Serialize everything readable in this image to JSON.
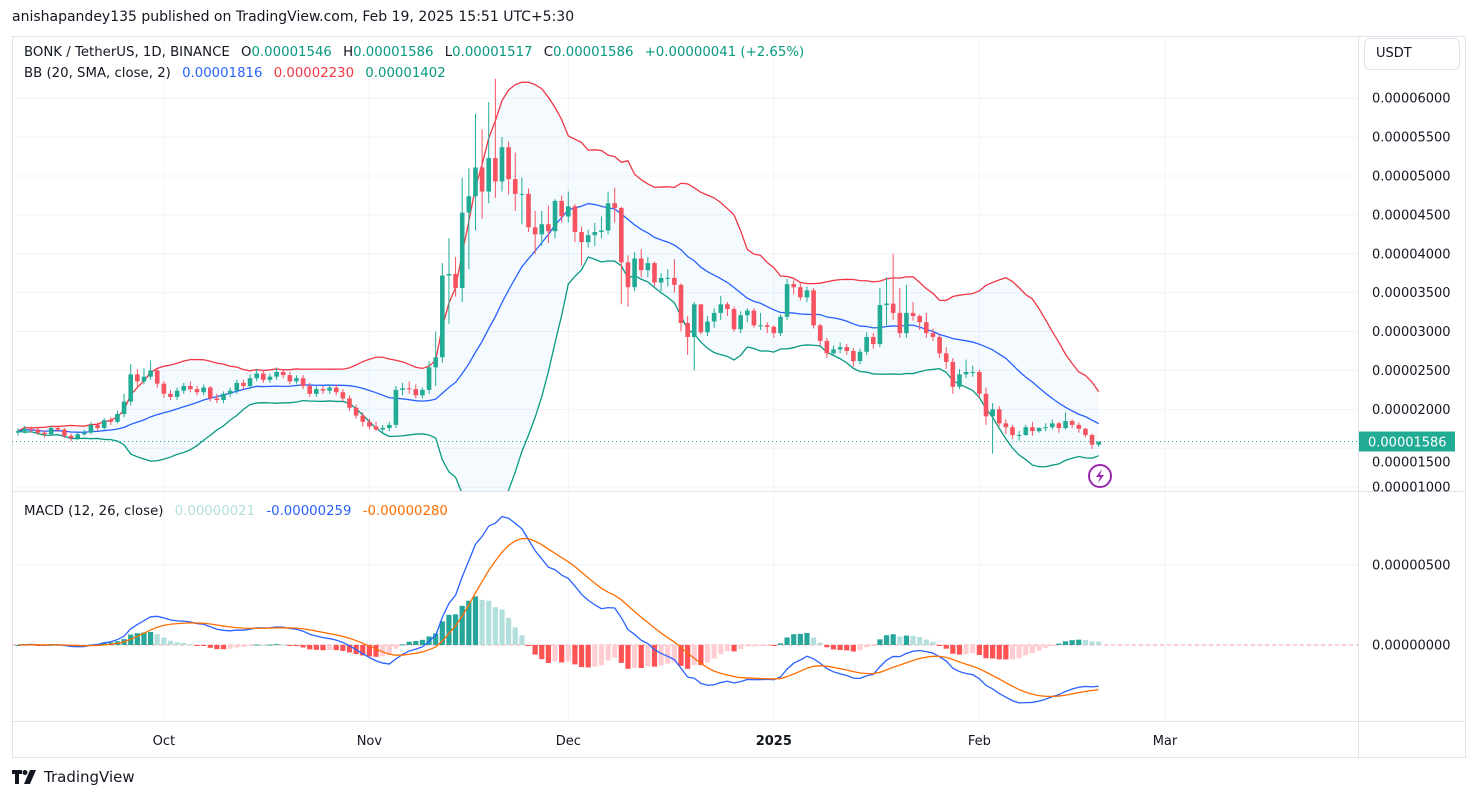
{
  "publish_line": "anishapandey135 published on TradingView.com, Feb 19, 2025 15:51 UTC+5:30",
  "symbol": {
    "title": "BONK / TetherUS, 1D, BINANCE",
    "o_label": "O",
    "o": "0.00001546",
    "h_label": "H",
    "h": "0.00001586",
    "l_label": "L",
    "l": "0.00001517",
    "c_label": "C",
    "c": "0.00001586",
    "change": "+0.00000041 (+2.65%)"
  },
  "bb": {
    "title": "BB (20, SMA, close, 2)",
    "basis": "0.00001816",
    "upper": "0.00002230",
    "lower": "0.00001402"
  },
  "macd": {
    "title": "MACD (12, 26, close)",
    "histogram": "0.00000021",
    "macd": "-0.00000259",
    "signal": "-0.00000280"
  },
  "currency_button": "USDT",
  "last_price_label": "0.00001586",
  "brand": "TradingView",
  "colors": {
    "up": "#22ab94",
    "down": "#f7525f",
    "bb_upper": "#f23645",
    "bb_basis": "#2962ff",
    "bb_lower": "#089981",
    "macd": "#2962ff",
    "signal": "#ff6d00",
    "hist_up_strong": "#26a69a",
    "hist_up_weak": "#b2dfdb",
    "hist_down_weak": "#ffcdd2",
    "hist_down_strong": "#ff5252",
    "alert_icon": "#9c27b0"
  },
  "icons": {
    "alert": "lightning-bolt-icon",
    "logo": "tradingview-logo-icon"
  },
  "chart_data": {
    "type": "candlestick",
    "price_ylim": [
      9.5e-06,
      6.8e-05
    ],
    "macd_ylim": [
      -4.75e-06,
      9.56e-06
    ],
    "price_ticks": [
      "0.00006000",
      "0.00005500",
      "0.00005000",
      "0.00004500",
      "0.00004000",
      "0.00003500",
      "0.00003000",
      "0.00002500",
      "0.00002000",
      "0.00001500",
      "0.00001000"
    ],
    "macd_ticks": [
      "0.00000500",
      "0.00000000"
    ],
    "time_ticks": [
      {
        "label": "Oct",
        "date": "2024-10-01"
      },
      {
        "label": "Nov",
        "date": "2024-11-01"
      },
      {
        "label": "Dec",
        "date": "2024-12-01"
      },
      {
        "label": "2025",
        "date": "2025-01-01",
        "bold": true
      },
      {
        "label": "Feb",
        "date": "2025-02-01"
      },
      {
        "label": "Mar",
        "date": "2025-03-01"
      }
    ],
    "grid": true,
    "indicators": [
      "Bollinger Bands (20, SMA, close, 2)",
      "MACD (12, 26, close)"
    ],
    "first_date": "2024-09-09",
    "last_date": "2025-02-19",
    "open": [
      1.7e-05,
      1.72e-05,
      1.75e-05,
      1.74e-05,
      1.7e-05,
      1.68e-05,
      1.76e-05,
      1.74e-05,
      1.66e-05,
      1.63e-05,
      1.68e-05,
      1.7e-05,
      1.8e-05,
      1.76e-05,
      1.86e-05,
      1.84e-05,
      1.94e-05,
      2.1e-05,
      2.45e-05,
      2.36e-05,
      2.42e-05,
      2.5e-05,
      2.33e-05,
      2.2e-05,
      2.16e-05,
      2.24e-05,
      2.3e-05,
      2.26e-05,
      2.22e-05,
      2.28e-05,
      2.14e-05,
      2.12e-05,
      2.2e-05,
      2.24e-05,
      2.34e-05,
      2.3e-05,
      2.4e-05,
      2.46e-05,
      2.38e-05,
      2.42e-05,
      2.48e-05,
      2.44e-05,
      2.36e-05,
      2.4e-05,
      2.3e-05,
      2.2e-05,
      2.26e-05,
      2.24e-05,
      2.28e-05,
      2.22e-05,
      2.14e-05,
      2.02e-05,
      1.92e-05,
      1.84e-05,
      1.78e-05,
      1.74e-05,
      1.76e-05,
      1.8e-05,
      2.25e-05,
      2.27e-05,
      2.26e-05,
      2.18e-05,
      2.25e-05,
      2.54e-05,
      2.67e-05,
      3.72e-05,
      3.74e-05,
      3.56e-05,
      4.53e-05,
      4.74e-05,
      5.11e-05,
      4.8e-05,
      5.23e-05,
      4.93e-05,
      5.37e-05,
      4.96e-05,
      4.77e-05,
      4.77e-05,
      4.34e-05,
      4.25e-05,
      4.38e-05,
      4.29e-05,
      4.68e-05,
      4.48e-05,
      4.61e-05,
      4.28e-05,
      4.15e-05,
      4.24e-05,
      4.28e-05,
      4.3e-05,
      4.65e-05,
      4.59e-05,
      3.89e-05,
      3.57e-05,
      3.94e-05,
      3.79e-05,
      3.88e-05,
      3.63e-05,
      3.69e-05,
      3.69e-05,
      3.6e-05,
      3.11e-05,
      2.93e-05,
      3.35e-05,
      2.99e-05,
      3.13e-05,
      3.24e-05,
      3.35e-05,
      3.29e-05,
      3.03e-05,
      3.21e-05,
      3.27e-05,
      3.08e-05,
      3.08e-05,
      3.06e-05,
      2.98e-05,
      3.19e-05,
      3.61e-05,
      3.57e-05,
      3.44e-05,
      3.53e-05,
      3.08e-05,
      2.88e-05,
      2.72e-05,
      2.77e-05,
      2.8e-05,
      2.75e-05,
      2.62e-05,
      2.74e-05,
      2.93e-05,
      2.84e-05,
      3.34e-05,
      3.36e-05,
      3.24e-05,
      2.98e-05,
      3.24e-05,
      3.2e-05,
      3.12e-05,
      2.98e-05,
      2.93e-05,
      2.72e-05,
      2.61e-05,
      2.29e-05,
      2.45e-05,
      2.48e-05,
      2.48e-05,
      2.2e-05,
      1.91e-05,
      2e-05,
      1.82e-05,
      1.77e-05,
      1.67e-05,
      1.67e-05,
      1.77e-05,
      1.72e-05,
      1.76e-05,
      1.77e-05,
      1.82e-05,
      1.76e-05,
      1.85e-05,
      1.8e-05,
      1.75e-05,
      1.67e-05,
      1.546e-05
    ],
    "high": [
      1.76e-05,
      1.79e-05,
      1.78e-05,
      1.77e-05,
      1.73e-05,
      1.79e-05,
      1.78e-05,
      1.76e-05,
      1.69e-05,
      1.71e-05,
      1.74e-05,
      1.84e-05,
      1.83e-05,
      1.89e-05,
      1.9e-05,
      1.98e-05,
      2.2e-05,
      2.58e-05,
      2.52e-05,
      2.53e-05,
      2.63e-05,
      2.52e-05,
      2.36e-05,
      2.25e-05,
      2.28e-05,
      2.34e-05,
      2.36e-05,
      2.3e-05,
      2.32e-05,
      2.3e-05,
      2.2e-05,
      2.23e-05,
      2.28e-05,
      2.38e-05,
      2.38e-05,
      2.45e-05,
      2.52e-05,
      2.5e-05,
      2.46e-05,
      2.54e-05,
      2.52e-05,
      2.48e-05,
      2.44e-05,
      2.44e-05,
      2.34e-05,
      2.3e-05,
      2.3e-05,
      2.32e-05,
      2.32e-05,
      2.26e-05,
      2.18e-05,
      2.06e-05,
      1.96e-05,
      1.88e-05,
      1.84e-05,
      1.8e-05,
      1.84e-05,
      2.3e-05,
      2.34e-05,
      2.36e-05,
      2.32e-05,
      2.28e-05,
      2.62e-05,
      3e-05,
      3.88e-05,
      4.2e-05,
      3.96e-05,
      4.98e-05,
      5.1e-05,
      5.8e-05,
      5.6e-05,
      5.95e-05,
      6.25e-05,
      5.5e-05,
      5.44e-05,
      5.3e-05,
      4.98e-05,
      4.84e-05,
      4.55e-05,
      4.55e-05,
      4.62e-05,
      4.7e-05,
      4.75e-05,
      4.8e-05,
      4.64e-05,
      4.35e-05,
      4.31e-05,
      4.4e-05,
      4.48e-05,
      4.8e-05,
      4.85e-05,
      4.6e-05,
      3.98e-05,
      4.02e-05,
      4.06e-05,
      3.96e-05,
      3.9e-05,
      3.75e-05,
      3.8e-05,
      3.93e-05,
      3.62e-05,
      3.2e-05,
      3.38e-05,
      3.35e-05,
      3.2e-05,
      3.3e-05,
      3.46e-05,
      3.38e-05,
      3.32e-05,
      3.26e-05,
      3.3e-05,
      3.3e-05,
      3.24e-05,
      3.12e-05,
      3.08e-05,
      3.22e-05,
      3.68e-05,
      3.66e-05,
      3.62e-05,
      3.58e-05,
      3.56e-05,
      3.1e-05,
      2.92e-05,
      2.82e-05,
      2.86e-05,
      2.84e-05,
      2.79e-05,
      2.78e-05,
      2.99e-05,
      2.98e-05,
      3.56e-05,
      3.7e-05,
      4e-05,
      3.56e-05,
      3.6e-05,
      3.38e-05,
      3.22e-05,
      3.24e-05,
      3.04e-05,
      2.96e-05,
      2.8e-05,
      2.66e-05,
      2.52e-05,
      2.64e-05,
      2.56e-05,
      2.51e-05,
      2.28e-05,
      2.08e-05,
      2.04e-05,
      1.87e-05,
      1.8e-05,
      1.72e-05,
      1.8e-05,
      1.84e-05,
      1.77e-05,
      1.82e-05,
      1.87e-05,
      1.84e-05,
      1.96e-05,
      1.87e-05,
      1.83e-05,
      1.76e-05,
      1.69e-05,
      1.586e-05
    ],
    "low": [
      1.66e-05,
      1.69e-05,
      1.7e-05,
      1.67e-05,
      1.64e-05,
      1.66e-05,
      1.71e-05,
      1.63e-05,
      1.59e-05,
      1.61e-05,
      1.66e-05,
      1.68e-05,
      1.72e-05,
      1.74e-05,
      1.8e-05,
      1.82e-05,
      1.9e-05,
      2.05e-05,
      2.3e-05,
      2.32e-05,
      2.38e-05,
      2.28e-05,
      2.15e-05,
      2.12e-05,
      2.12e-05,
      2.2e-05,
      2.22e-05,
      2.18e-05,
      2.18e-05,
      2.1e-05,
      2.08e-05,
      2.08e-05,
      2.16e-05,
      2.2e-05,
      2.26e-05,
      2.26e-05,
      2.36e-05,
      2.34e-05,
      2.34e-05,
      2.38e-05,
      2.4e-05,
      2.32e-05,
      2.33e-05,
      2.26e-05,
      2.16e-05,
      2.16e-05,
      2.2e-05,
      2.2e-05,
      2.18e-05,
      2.1e-05,
      1.98e-05,
      1.88e-05,
      1.78e-05,
      1.74e-05,
      1.72e-05,
      1.7e-05,
      1.72e-05,
      1.76e-05,
      2.18e-05,
      2.2e-05,
      2.14e-05,
      2.14e-05,
      2.2e-05,
      2.3e-05,
      2.6e-05,
      3.1e-05,
      3.45e-05,
      3.38e-05,
      3.8e-05,
      4.3e-05,
      4.45e-05,
      4.65e-05,
      4.72e-05,
      4.8e-05,
      4.76e-05,
      4.55e-05,
      4.38e-05,
      4.28e-05,
      4e-05,
      4.1e-05,
      4.14e-05,
      4.2e-05,
      4.4e-05,
      4.4e-05,
      4.15e-05,
      3.85e-05,
      4.08e-05,
      4.1e-05,
      4.2e-05,
      4.25e-05,
      4.4e-05,
      3.35e-05,
      3.32e-05,
      3.52e-05,
      3.7e-05,
      3.7e-05,
      3.58e-05,
      3.52e-05,
      3.58e-05,
      3.5e-05,
      3e-05,
      2.7e-05,
      2.5e-05,
      2.96e-05,
      2.94e-05,
      3.05e-05,
      3.15e-05,
      3.2e-05,
      3e-05,
      2.98e-05,
      3.12e-05,
      3.05e-05,
      3.02e-05,
      2.98e-05,
      2.92e-05,
      2.94e-05,
      3.15e-05,
      3.48e-05,
      3.4e-05,
      3.38e-05,
      3.04e-05,
      2.82e-05,
      2.66e-05,
      2.7e-05,
      2.72e-05,
      2.7e-05,
      2.55e-05,
      2.58e-05,
      2.7e-05,
      2.78e-05,
      2.8e-05,
      3.08e-05,
      3.15e-05,
      2.92e-05,
      2.92e-05,
      3.14e-05,
      3.02e-05,
      2.92e-05,
      2.88e-05,
      2.66e-05,
      2.52e-05,
      2.2e-05,
      2.26e-05,
      2.4e-05,
      2.42e-05,
      2.14e-05,
      1.8e-05,
      1.43e-05,
      1.78e-05,
      1.68e-05,
      1.62e-05,
      1.6e-05,
      1.66e-05,
      1.66e-05,
      1.7e-05,
      1.72e-05,
      1.74e-05,
      1.7e-05,
      1.74e-05,
      1.76e-05,
      1.7e-05,
      1.64e-05,
      1.49e-05,
      1.517e-05
    ],
    "close": [
      1.72e-05,
      1.75e-05,
      1.74e-05,
      1.7e-05,
      1.68e-05,
      1.76e-05,
      1.74e-05,
      1.66e-05,
      1.63e-05,
      1.68e-05,
      1.7e-05,
      1.8e-05,
      1.76e-05,
      1.86e-05,
      1.84e-05,
      1.94e-05,
      2.1e-05,
      2.45e-05,
      2.36e-05,
      2.42e-05,
      2.5e-05,
      2.33e-05,
      2.2e-05,
      2.16e-05,
      2.24e-05,
      2.3e-05,
      2.26e-05,
      2.22e-05,
      2.28e-05,
      2.14e-05,
      2.12e-05,
      2.2e-05,
      2.24e-05,
      2.34e-05,
      2.3e-05,
      2.4e-05,
      2.46e-05,
      2.38e-05,
      2.42e-05,
      2.48e-05,
      2.44e-05,
      2.36e-05,
      2.4e-05,
      2.3e-05,
      2.2e-05,
      2.26e-05,
      2.24e-05,
      2.28e-05,
      2.22e-05,
      2.14e-05,
      2.02e-05,
      1.92e-05,
      1.84e-05,
      1.78e-05,
      1.74e-05,
      1.76e-05,
      1.8e-05,
      2.25e-05,
      2.27e-05,
      2.26e-05,
      2.18e-05,
      2.25e-05,
      2.54e-05,
      2.67e-05,
      3.72e-05,
      3.74e-05,
      3.56e-05,
      4.53e-05,
      4.74e-05,
      5.11e-05,
      4.8e-05,
      5.23e-05,
      4.93e-05,
      5.37e-05,
      4.96e-05,
      4.77e-05,
      4.77e-05,
      4.34e-05,
      4.25e-05,
      4.38e-05,
      4.29e-05,
      4.68e-05,
      4.48e-05,
      4.61e-05,
      4.28e-05,
      4.15e-05,
      4.24e-05,
      4.28e-05,
      4.3e-05,
      4.65e-05,
      4.59e-05,
      3.89e-05,
      3.57e-05,
      3.94e-05,
      3.79e-05,
      3.88e-05,
      3.63e-05,
      3.69e-05,
      3.69e-05,
      3.6e-05,
      3.11e-05,
      2.93e-05,
      3.35e-05,
      2.99e-05,
      3.13e-05,
      3.24e-05,
      3.35e-05,
      3.29e-05,
      3.03e-05,
      3.21e-05,
      3.27e-05,
      3.08e-05,
      3.08e-05,
      3.06e-05,
      2.98e-05,
      3.19e-05,
      3.61e-05,
      3.57e-05,
      3.44e-05,
      3.53e-05,
      3.08e-05,
      2.88e-05,
      2.72e-05,
      2.77e-05,
      2.8e-05,
      2.75e-05,
      2.62e-05,
      2.74e-05,
      2.93e-05,
      2.84e-05,
      3.34e-05,
      3.36e-05,
      3.24e-05,
      2.98e-05,
      3.24e-05,
      3.2e-05,
      3.12e-05,
      2.98e-05,
      2.93e-05,
      2.72e-05,
      2.61e-05,
      2.29e-05,
      2.45e-05,
      2.48e-05,
      2.48e-05,
      2.2e-05,
      1.91e-05,
      2e-05,
      1.82e-05,
      1.77e-05,
      1.67e-05,
      1.67e-05,
      1.77e-05,
      1.72e-05,
      1.76e-05,
      1.77e-05,
      1.82e-05,
      1.76e-05,
      1.85e-05,
      1.8e-05,
      1.75e-05,
      1.67e-05,
      1.546e-05,
      1.586e-05
    ]
  }
}
